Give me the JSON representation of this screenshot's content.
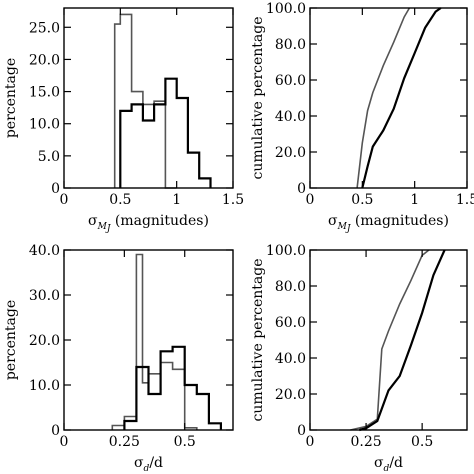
{
  "chart_data": [
    {
      "id": "top-left",
      "type": "histogram",
      "xlabel": {
        "symbol": "σ",
        "sub": "M",
        "subsub": "J",
        "unit": " (magnitudes)"
      },
      "ylabel": "percentage",
      "xlim": [
        0,
        1.5
      ],
      "ylim": [
        0,
        28
      ],
      "xticks": [
        0,
        0.5,
        1.0,
        1.5
      ],
      "xtick_labels": [
        "0",
        "0.5",
        "1",
        "1.5"
      ],
      "yticks": [
        0,
        5,
        10,
        15,
        20,
        25
      ],
      "ytick_labels": [
        "0",
        "5.0",
        "10.0",
        "15.0",
        "20.0",
        "25.0"
      ],
      "series": [
        {
          "color": "#555555",
          "edges": [
            0.45,
            0.5,
            0.6,
            0.7,
            0.8,
            0.9,
            1.0
          ],
          "values": [
            25.5,
            27.0,
            15.0,
            13.0,
            13.5,
            0
          ]
        },
        {
          "color": "#000000",
          "edges": [
            0.5,
            0.6,
            0.7,
            0.8,
            0.9,
            1.0,
            1.1,
            1.2,
            1.3
          ],
          "values": [
            12.0,
            13.0,
            10.5,
            13.0,
            17.0,
            14.0,
            5.5,
            1.5
          ]
        }
      ]
    },
    {
      "id": "top-right",
      "type": "line",
      "xlabel": {
        "symbol": "σ",
        "sub": "M",
        "subsub": "J",
        "unit": " (magnitudes)"
      },
      "ylabel": "cumulative percentage",
      "xlim": [
        0,
        1.5
      ],
      "ylim": [
        0,
        100
      ],
      "xticks": [
        0,
        0.5,
        1.0,
        1.5
      ],
      "xtick_labels": [
        "0",
        "0.5",
        "1",
        "1.5"
      ],
      "yticks": [
        0,
        20,
        40,
        60,
        80,
        100
      ],
      "ytick_labels": [
        "0",
        "20.0",
        "40.0",
        "60.0",
        "80.0",
        "100.0"
      ],
      "series": [
        {
          "color": "#555555",
          "x": [
            0.45,
            0.5,
            0.55,
            0.6,
            0.7,
            0.8,
            0.9,
            0.95
          ],
          "y": [
            0,
            25,
            43,
            53,
            68,
            81,
            95,
            100
          ]
        },
        {
          "color": "#000000",
          "x": [
            0.5,
            0.55,
            0.6,
            0.7,
            0.8,
            0.9,
            1.0,
            1.1,
            1.2,
            1.25
          ],
          "y": [
            0,
            12,
            23,
            32,
            44,
            61,
            75,
            89,
            98,
            100
          ]
        }
      ]
    },
    {
      "id": "bottom-left",
      "type": "histogram",
      "xlabel": {
        "symbol": "σ",
        "sub": "d",
        "subsub": "",
        "unit": "/d"
      },
      "ylabel": "percentage",
      "xlim": [
        0,
        0.7
      ],
      "ylim": [
        0,
        40
      ],
      "xticks": [
        0,
        0.25,
        0.5
      ],
      "xtick_labels": [
        "0",
        "0.25",
        "0.5"
      ],
      "yticks": [
        0,
        10,
        20,
        30,
        40
      ],
      "ytick_labels": [
        "0",
        "10.0",
        "20.0",
        "30.0",
        "40.0"
      ],
      "series": [
        {
          "color": "#555555",
          "edges": [
            0.2,
            0.25,
            0.3,
            0.325,
            0.35,
            0.4,
            0.45,
            0.5,
            0.55
          ],
          "values": [
            1.0,
            3.0,
            39.0,
            10.5,
            12.5,
            15.0,
            13.5,
            0.5
          ]
        },
        {
          "color": "#000000",
          "edges": [
            0.25,
            0.3,
            0.35,
            0.4,
            0.45,
            0.5,
            0.55,
            0.6,
            0.65
          ],
          "values": [
            2.0,
            14.0,
            8.0,
            17.5,
            18.5,
            10.0,
            8.0,
            1.5
          ]
        }
      ]
    },
    {
      "id": "bottom-right",
      "type": "line",
      "xlabel": {
        "symbol": "σ",
        "sub": "d",
        "subsub": "",
        "unit": "/d"
      },
      "ylabel": "cumulative percentage",
      "xlim": [
        0,
        0.7
      ],
      "ylim": [
        0,
        100
      ],
      "xticks": [
        0,
        0.25,
        0.5
      ],
      "xtick_labels": [
        "0",
        "0.25",
        "0.5"
      ],
      "yticks": [
        0,
        20,
        40,
        60,
        80,
        100
      ],
      "ytick_labels": [
        "0",
        "20.0",
        "40.0",
        "60.0",
        "80.0",
        "100.0"
      ],
      "series": [
        {
          "color": "#555555",
          "x": [
            0.18,
            0.25,
            0.3,
            0.32,
            0.35,
            0.4,
            0.45,
            0.5,
            0.53
          ],
          "y": [
            0,
            2,
            6,
            45,
            55,
            70,
            83,
            97,
            100
          ]
        },
        {
          "color": "#000000",
          "x": [
            0.22,
            0.25,
            0.3,
            0.35,
            0.4,
            0.45,
            0.5,
            0.55,
            0.6
          ],
          "y": [
            0,
            1,
            5,
            22,
            30,
            47,
            65,
            86,
            100
          ]
        }
      ]
    }
  ]
}
